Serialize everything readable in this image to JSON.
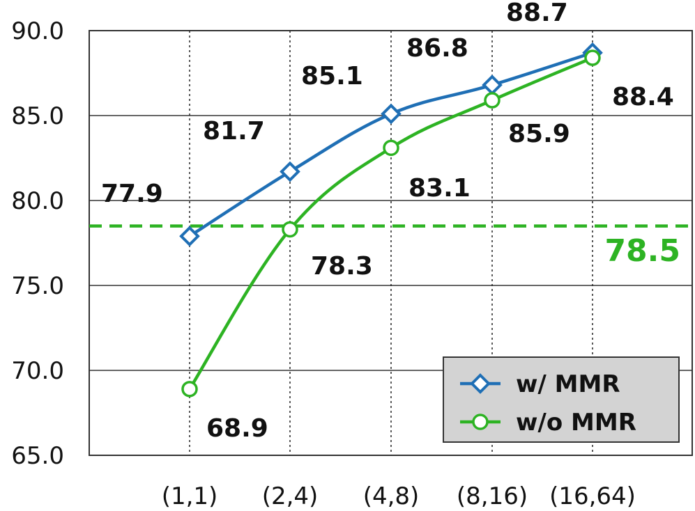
{
  "chart_data": {
    "type": "line",
    "categories": [
      "(1,1)",
      "(2,4)",
      "(4,8)",
      "(8,16)",
      "(16,64)"
    ],
    "series": [
      {
        "name": "w/ MMR",
        "values": [
          77.9,
          81.7,
          85.1,
          86.8,
          88.7
        ],
        "labels": [
          "77.9",
          "81.7",
          "85.1",
          "86.8",
          "88.7"
        ],
        "color": "#1f6fb5",
        "marker": "diamond"
      },
      {
        "name": "w/o MMR",
        "values": [
          68.9,
          78.3,
          83.1,
          85.9,
          88.4
        ],
        "labels": [
          "68.9",
          "78.3",
          "83.1",
          "85.9",
          "88.4"
        ],
        "color": "#2db323",
        "marker": "circle"
      }
    ],
    "reference_line": {
      "value": 78.5,
      "label": "78.5",
      "color": "#2db323",
      "style": "dashed"
    },
    "yticks": [
      "65.0",
      "70.0",
      "75.0",
      "80.0",
      "85.0",
      "90.0"
    ],
    "ylim": [
      65,
      90
    ],
    "title": "",
    "xlabel": "",
    "ylabel": "",
    "grid": {
      "horizontal": "solid",
      "vertical": "dotted"
    },
    "legend_position": "bottom-right",
    "legend_background": "#d3d3d3"
  }
}
